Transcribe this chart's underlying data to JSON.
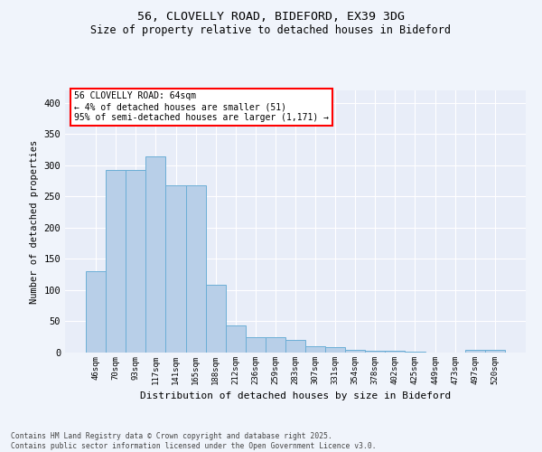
{
  "title1": "56, CLOVELLY ROAD, BIDEFORD, EX39 3DG",
  "title2": "Size of property relative to detached houses in Bideford",
  "xlabel": "Distribution of detached houses by size in Bideford",
  "ylabel": "Number of detached properties",
  "categories": [
    "46sqm",
    "70sqm",
    "93sqm",
    "117sqm",
    "141sqm",
    "165sqm",
    "188sqm",
    "212sqm",
    "236sqm",
    "259sqm",
    "283sqm",
    "307sqm",
    "331sqm",
    "354sqm",
    "378sqm",
    "402sqm",
    "425sqm",
    "449sqm",
    "473sqm",
    "497sqm",
    "520sqm"
  ],
  "values": [
    130,
    292,
    293,
    315,
    268,
    268,
    108,
    43,
    25,
    25,
    21,
    10,
    8,
    5,
    3,
    3,
    2,
    0,
    0,
    5,
    5
  ],
  "bar_color": "#b8cfe8",
  "bar_edge_color": "#6baed6",
  "annotation_text": "56 CLOVELLY ROAD: 64sqm\n← 4% of detached houses are smaller (51)\n95% of semi-detached houses are larger (1,171) →",
  "footnote": "Contains HM Land Registry data © Crown copyright and database right 2025.\nContains public sector information licensed under the Open Government Licence v3.0.",
  "bg_color": "#f0f4fb",
  "plot_bg_color": "#e8edf8",
  "ylim": [
    0,
    420
  ],
  "yticks": [
    0,
    50,
    100,
    150,
    200,
    250,
    300,
    350,
    400
  ]
}
